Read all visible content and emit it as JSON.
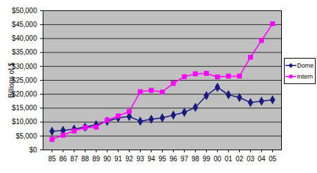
{
  "chart_data": {
    "type": "line",
    "y_label": "Billions of $",
    "categories": [
      "85",
      "86",
      "87",
      "88",
      "89",
      "90",
      "91",
      "92",
      "93",
      "94",
      "95",
      "96",
      "97",
      "98",
      "99",
      "00",
      "01",
      "02",
      "03",
      "04",
      "05"
    ],
    "series": [
      {
        "name": "Dome",
        "color": "#1a1a80",
        "marker": "diamond",
        "line_style": "solid",
        "values": [
          6700,
          7000,
          7500,
          8200,
          9000,
          10300,
          11500,
          12000,
          10300,
          11000,
          11500,
          12500,
          13500,
          15300,
          19500,
          22500,
          19800,
          18800,
          17000,
          17500,
          18000
        ]
      },
      {
        "name": "Intern",
        "color": "#ff00ff",
        "marker": "square",
        "line_style": "solid",
        "values": [
          3800,
          5300,
          6800,
          8000,
          8200,
          10700,
          12200,
          13800,
          20900,
          21400,
          20800,
          23900,
          26300,
          27300,
          27500,
          26200,
          26500,
          26500,
          33300,
          39300,
          45300
        ]
      }
    ],
    "ylim": [
      0,
      50000
    ],
    "yticks": [
      {
        "value": 0,
        "label": "$0"
      },
      {
        "value": 5000,
        "label": "$5,000"
      },
      {
        "value": 10000,
        "label": "$10,000"
      },
      {
        "value": 15000,
        "label": "$15,000"
      },
      {
        "value": 20000,
        "label": "$20,000"
      },
      {
        "value": 25000,
        "label": "$25,000"
      },
      {
        "value": 30000,
        "label": "$30,000"
      },
      {
        "value": 35000,
        "label": "$35,000"
      },
      {
        "value": 40000,
        "label": "$40,000"
      },
      {
        "value": 45000,
        "label": "$45,000"
      },
      {
        "value": 50000,
        "label": "$50,000"
      }
    ],
    "grid": true,
    "legend": "right"
  }
}
